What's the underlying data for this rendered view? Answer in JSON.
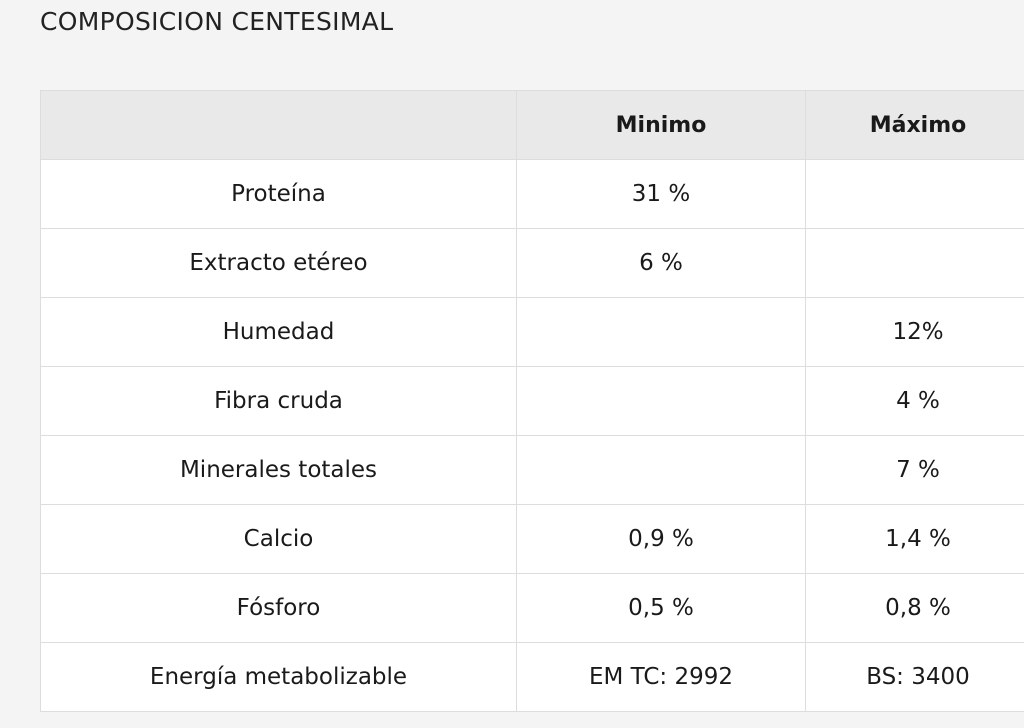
{
  "title": "COMPOSICION CENTESIMAL",
  "table": {
    "header": [
      null,
      "Minimo",
      "Máximo"
    ],
    "rows": [
      [
        "Proteína",
        "31 %",
        null
      ],
      [
        "Extracto etéreo",
        "6 %",
        null
      ],
      [
        "Humedad",
        null,
        "12%"
      ],
      [
        "Fibra cruda",
        null,
        "4 %"
      ],
      [
        "Minerales totales",
        null,
        "7 %"
      ],
      [
        "Calcio",
        "0,9 %",
        "1,4 %"
      ],
      [
        "Fósforo",
        "0,5 %",
        "0,8 %"
      ],
      [
        "Energía metabolizable",
        "EM TC: 2992",
        "BS: 3400"
      ]
    ]
  }
}
